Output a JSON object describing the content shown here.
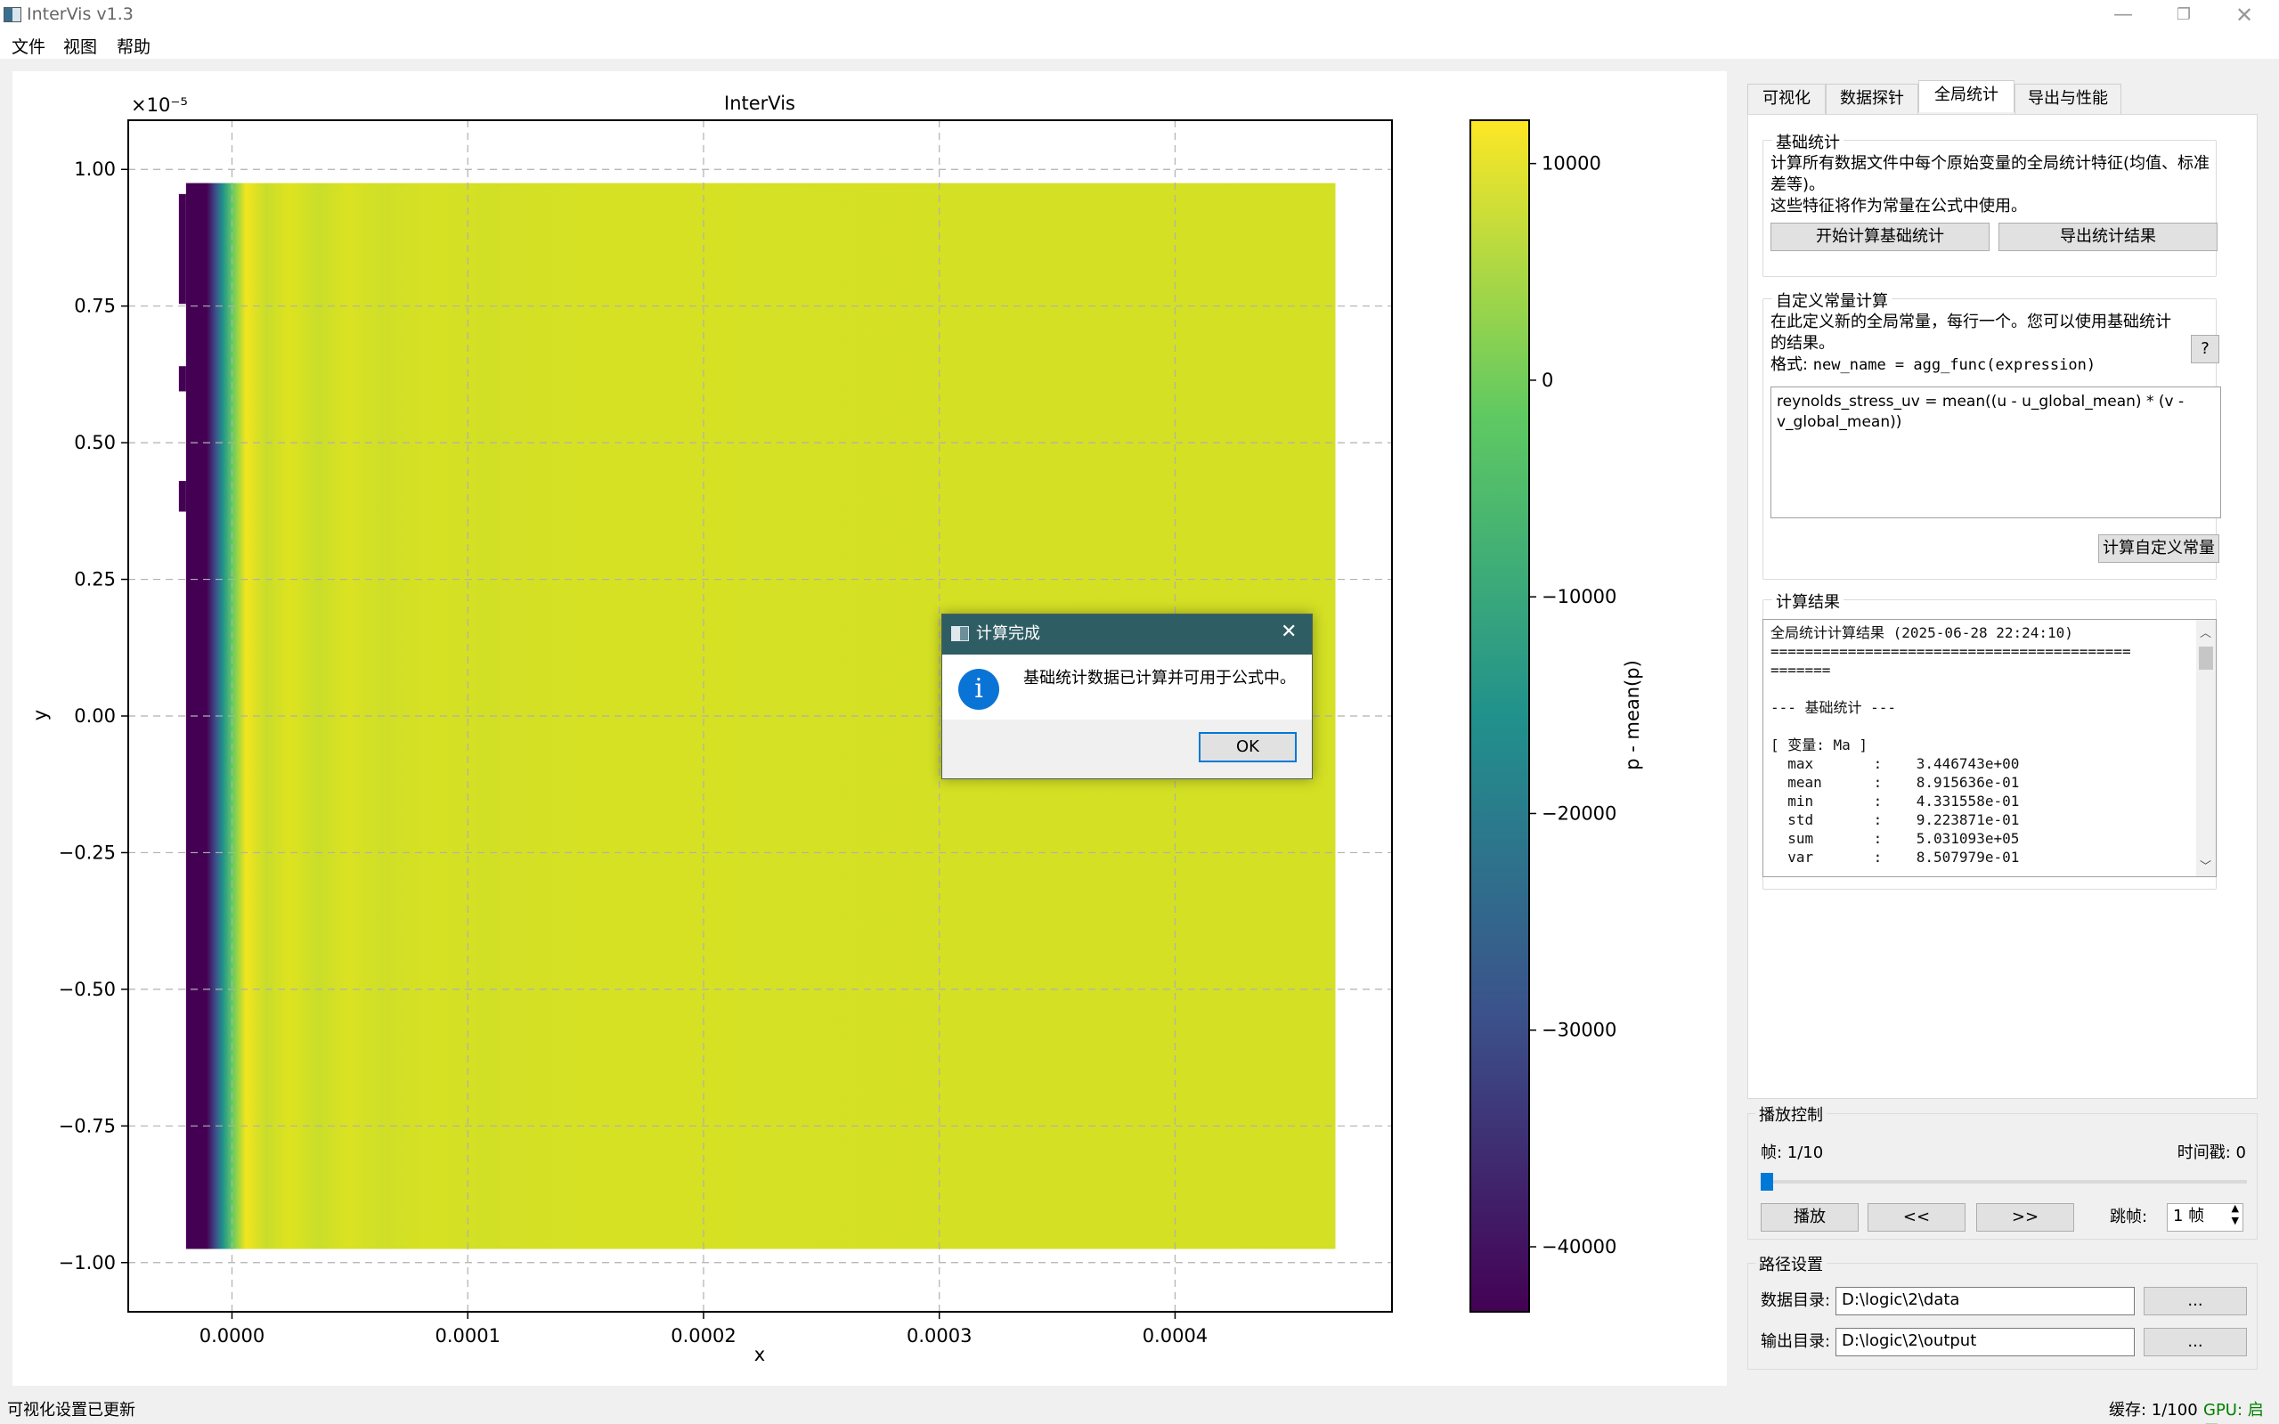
{
  "window": {
    "title": "InterVis v1.3"
  },
  "menu": {
    "file": "文件",
    "view": "视图",
    "help": "帮助"
  },
  "plot": {
    "title": "InterVis",
    "xlabel": "x",
    "ylabel": "y",
    "y_scale_label": "×10⁻⁵",
    "x_ticks": [
      "0.0000",
      "0.0001",
      "0.0002",
      "0.0003",
      "0.0004"
    ],
    "y_ticks": [
      "1.00",
      "0.75",
      "0.50",
      "0.25",
      "0.00",
      "−0.25",
      "−0.50",
      "−0.75",
      "−1.00"
    ],
    "colorbar_label": "p - mean(p)",
    "colorbar_ticks": [
      "10000",
      "0",
      "−10000",
      "−20000",
      "−30000",
      "−40000"
    ],
    "colormap": [
      "#440154",
      "#3b528b",
      "#21918c",
      "#5ec962",
      "#fde725"
    ]
  },
  "chart_data": {
    "type": "heatmap",
    "title": "InterVis",
    "xlabel": "x",
    "ylabel": "y",
    "xlim": [
      -4.4e-05,
      0.000492
    ],
    "ylim": [
      -1.09e-05,
      1.09e-05
    ],
    "data_extent_x": [
      -1.95e-05,
      0.000468
    ],
    "data_extent_y": [
      -9.75e-06,
      9.75e-06
    ],
    "colorbar": {
      "label": "p - mean(p)",
      "range": [
        -43000,
        12000
      ],
      "ticks": [
        10000,
        0,
        -10000,
        -20000,
        -30000,
        -40000
      ]
    },
    "profile_along_x": {
      "x": [
        -1.75e-05,
        -2e-06,
        1e-06,
        8e-06,
        1.8e-05,
        3.5e-05,
        6e-05,
        0.0001,
        0.0002,
        0.0004
      ],
      "value": [
        -43000,
        -15000,
        5000,
        11500,
        10500,
        9800,
        9400,
        9000,
        8700,
        8600
      ]
    },
    "grid": true
  },
  "tabs": {
    "visualize": "可视化",
    "data_probe": "数据探针",
    "global_stats": "全局统计",
    "export_perf": "导出与性能"
  },
  "basic_stats": {
    "group_title": "基础统计",
    "desc_line1": "计算所有数据文件中每个原始变量的全局统计特征(均值、标准",
    "desc_line2": "差等)。",
    "desc_line3": "这些特征将作为常量在公式中使用。",
    "start_button": "开始计算基础统计",
    "export_button": "导出统计结果"
  },
  "custom_const": {
    "group_title": "自定义常量计算",
    "desc_line1": "在此定义新的全局常量，每行一个。您可以使用基础统计",
    "desc_line2": "的结果。",
    "format_label": "格式: ",
    "format_code": "new_name = agg_func(expression)",
    "help_button": "?",
    "editor_line1": "reynolds_stress_uv = mean((u - u_global_mean) * (v -",
    "editor_line2": "v_global_mean))",
    "compute_button": "计算自定义常量"
  },
  "results": {
    "group_title": "计算结果",
    "lines": [
      "全局统计计算结果 (2025-06-28 22:24:10)",
      "==========================================",
      "=======",
      "",
      "--- 基础统计 ---",
      "",
      "[ 变量: Ma ]",
      "  max       :    3.446743e+00",
      "  mean      :    8.915636e-01",
      "  min       :    4.331558e-01",
      "  std       :    9.223871e-01",
      "  sum       :    5.031093e+05",
      "  var       :    8.507979e-01"
    ]
  },
  "playback": {
    "group_title": "播放控制",
    "frame_label": "帧: 1/10",
    "timestamp_label": "时间戳: 0",
    "frame_progress": 0.0,
    "play_button": "播放",
    "prev_button": "<<",
    "next_button": ">>",
    "skip_label": "跳帧:",
    "skip_value": "1 帧"
  },
  "paths": {
    "group_title": "路径设置",
    "data_dir_label": "数据目录:",
    "data_dir_value": "D:\\logic\\2\\data",
    "output_dir_label": "输出目录:",
    "output_dir_value": "D:\\logic\\2\\output",
    "browse_button": "..."
  },
  "status": {
    "left_text": "可视化设置已更新",
    "cache_text": "缓存: 1/100",
    "gpu_text": "GPU: 启用",
    "gpu_color": "#008000"
  },
  "dialog": {
    "title": "计算完成",
    "message": "基础统计数据已计算并可用于公式中。",
    "ok_button": "OK",
    "icon": "info-icon"
  }
}
